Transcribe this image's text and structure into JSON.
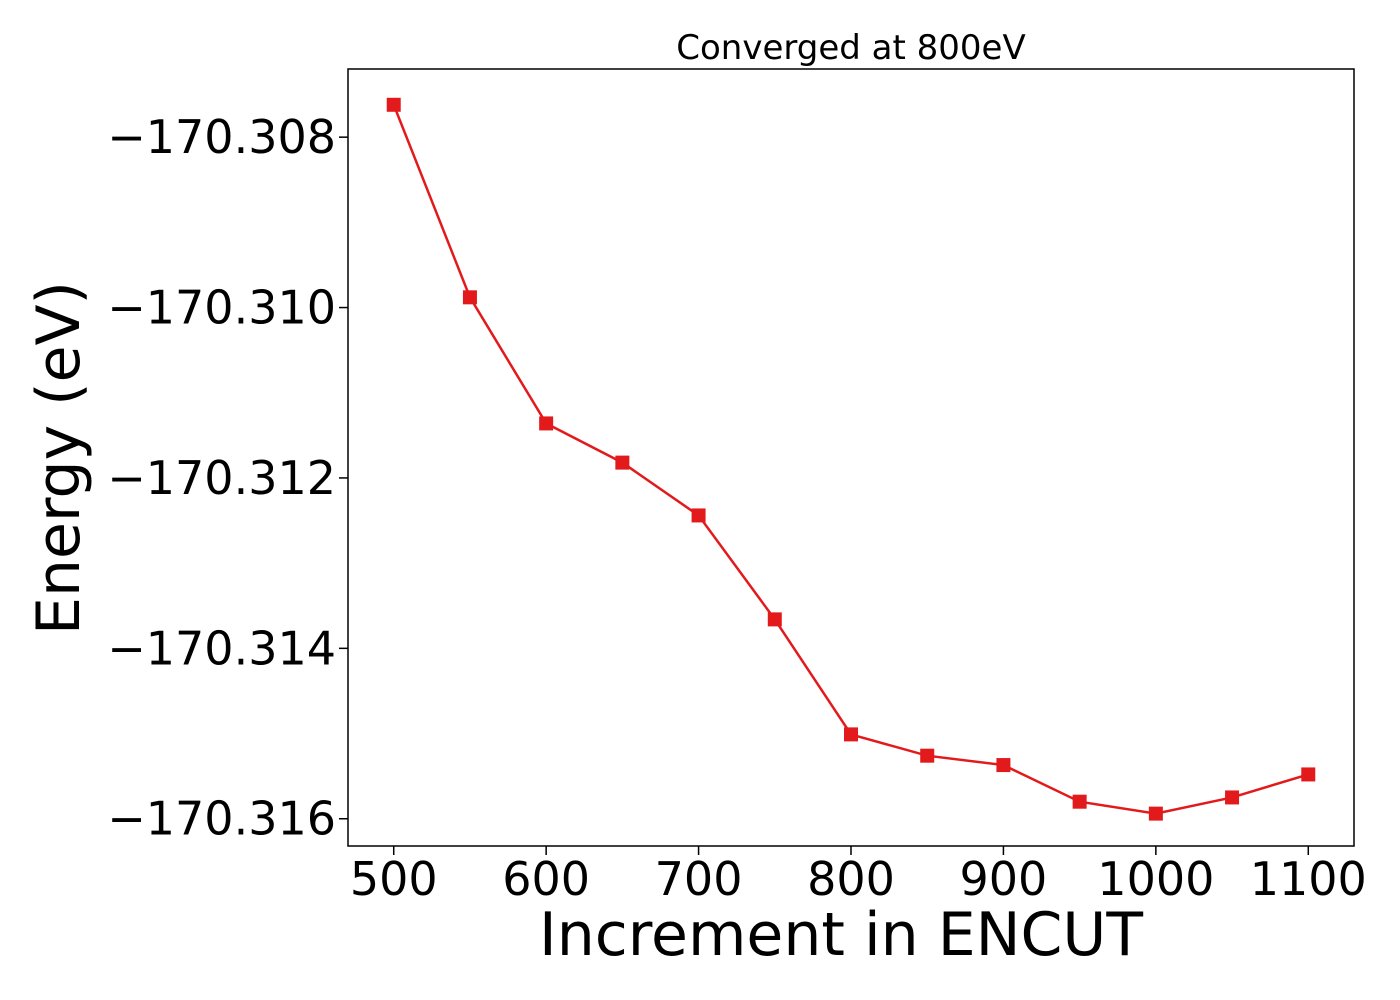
{
  "chart_data": {
    "type": "line",
    "title": "Converged at 800eV",
    "xlabel": "Increment in ENCUT",
    "ylabel": "Energy (eV)",
    "x": [
      500,
      550,
      600,
      650,
      700,
      750,
      800,
      850,
      900,
      950,
      1000,
      1050,
      1100
    ],
    "series": [
      {
        "values": [
          -170.30762,
          -170.30988,
          -170.31136,
          -170.31182,
          -170.31244,
          -170.31366,
          -170.31501,
          -170.31526,
          -170.31537,
          -170.3158,
          -170.31594,
          -170.31575,
          -170.31548
        ],
        "color": "#e31a1c",
        "marker": "square"
      }
    ],
    "xticks": [
      500,
      600,
      700,
      800,
      900,
      1000,
      1100
    ],
    "yticks": [
      -170.308,
      -170.31,
      -170.312,
      -170.314,
      -170.316
    ],
    "ytick_labels": [
      "−170.308",
      "−170.310",
      "−170.312",
      "−170.314",
      "−170.316"
    ],
    "xlim": [
      470,
      1130
    ],
    "ylim": [
      -170.31632,
      -170.3072
    ],
    "grid": false,
    "legend": "none"
  }
}
